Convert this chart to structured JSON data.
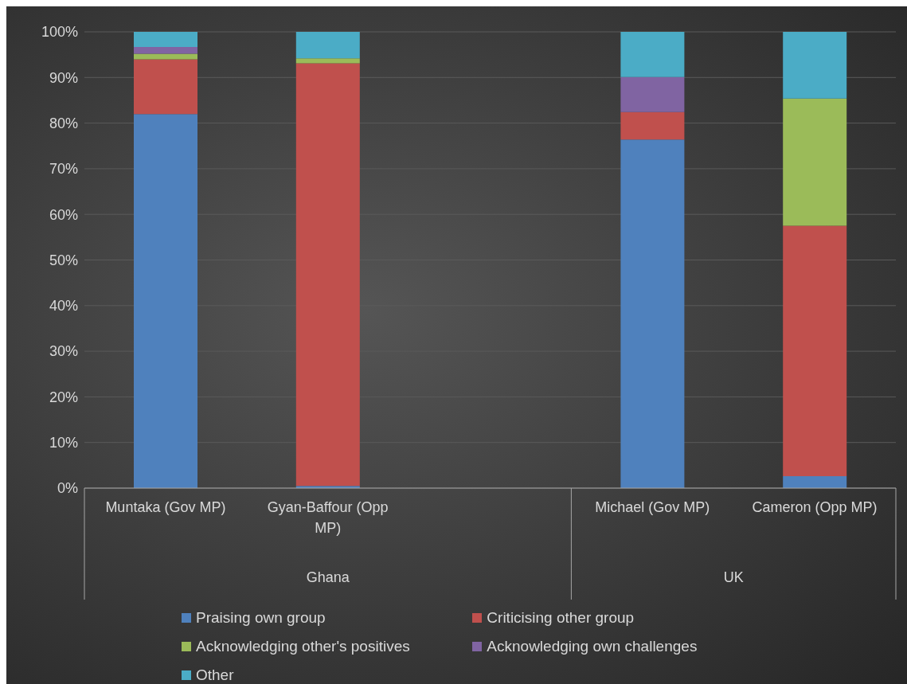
{
  "chart_data": {
    "type": "bar",
    "stacked": true,
    "categories": [
      "Muntaka (Gov MP)",
      "Gyan-Baffour (Opp MP)",
      null,
      "Michael (Gov MP)",
      "Cameron (Opp MP)"
    ],
    "annotations": [
      "Ghana",
      "UK"
    ],
    "series": [
      {
        "name": "Praising own group",
        "color": "#4f81bd",
        "values": [
          82,
          0.5,
          null,
          76.4,
          2.6
        ]
      },
      {
        "name": "Criticising other group",
        "color": "#c0504d",
        "values": [
          12,
          92.6,
          null,
          6,
          54.9
        ]
      },
      {
        "name": "Acknowledging other's positives",
        "color": "#9bbb59",
        "values": [
          1.2,
          1.1,
          null,
          0,
          27.9
        ]
      },
      {
        "name": "Acknowledging own challenges",
        "color": "#8064a2",
        "values": [
          1.5,
          0,
          null,
          7.7,
          0
        ]
      },
      {
        "name": "Other",
        "color": "#4bacc6",
        "values": [
          3.3,
          5.8,
          null,
          9.9,
          14.6
        ]
      }
    ],
    "ylim": [
      0,
      100
    ],
    "yticks": [
      {
        "value": 0,
        "label": "0%"
      },
      {
        "value": 10,
        "label": "10%"
      },
      {
        "value": 20,
        "label": "20%"
      },
      {
        "value": 30,
        "label": "30%"
      },
      {
        "value": 40,
        "label": "40%"
      },
      {
        "value": 50,
        "label": "50%"
      },
      {
        "value": 60,
        "label": "60%"
      },
      {
        "value": 70,
        "label": "70%"
      },
      {
        "value": 80,
        "label": "80%"
      },
      {
        "value": 90,
        "label": "90%"
      },
      {
        "value": 100,
        "label": "100%"
      }
    ],
    "grid": "y",
    "legend": "bottom"
  }
}
